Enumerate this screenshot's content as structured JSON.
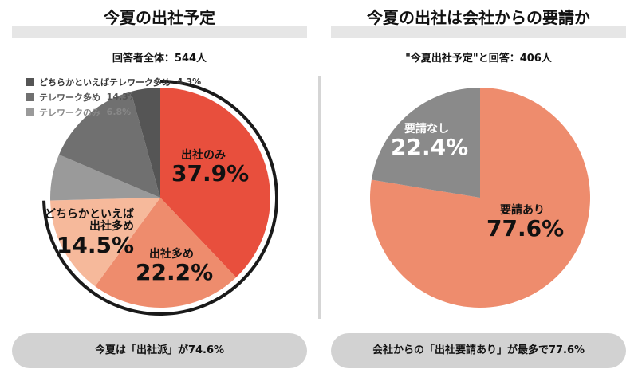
{
  "left": {
    "title": "今夏の出社予定",
    "subtitle": "回答者全体：544人",
    "summary": "今夏は「出社派」が74.6%"
  },
  "right": {
    "title": "今夏の出社は会社からの要請か",
    "subtitle": "\"今夏出社予定\"と回答：406人",
    "summary": "会社からの「出社要請あり」が最多で77.6%"
  },
  "chart_data": [
    {
      "type": "pie",
      "title": "今夏の出社予定",
      "start": "top",
      "direction": "clockwise",
      "slices": [
        {
          "label": "出社のみ",
          "value": 37.9,
          "display": "37.9%",
          "color": "#e84f3d"
        },
        {
          "label": "出社多め",
          "value": 22.2,
          "display": "22.2%",
          "color": "#ee8c6d"
        },
        {
          "label": "どちらかといえば出社多め",
          "label_lines": [
            "どちらかといえば",
            "出社多め"
          ],
          "value": 14.5,
          "display": "14.5%",
          "color": "#f6b99b"
        },
        {
          "label": "テレワークのみ",
          "value": 6.8,
          "display": "6.8%",
          "color": "#9a9a9a"
        },
        {
          "label": "テレワーク多め",
          "value": 14.3,
          "display": "14.3%",
          "color": "#707070"
        },
        {
          "label": "どちらかといえばテレワーク多め",
          "value": 4.3,
          "display": "4.3%",
          "color": "#555555"
        }
      ],
      "legend": [
        {
          "label": "どちらかといえばテレワーク多め",
          "display": "4.3%",
          "color": "#555555"
        },
        {
          "label": "テレワーク多め",
          "display": "14.3%",
          "color": "#707070"
        },
        {
          "label": "テレワークのみ",
          "display": "6.8%",
          "color": "#9a9a9a"
        }
      ],
      "highlight_arc_total": 74.6
    },
    {
      "type": "pie",
      "title": "今夏の出社は会社からの要請か",
      "start": "top",
      "direction": "clockwise",
      "slices": [
        {
          "label": "要請あり",
          "value": 77.6,
          "display": "77.6%",
          "color": "#ee8c6d"
        },
        {
          "label": "要請なし",
          "value": 22.4,
          "display": "22.4%",
          "color": "#8a8a8a"
        }
      ]
    }
  ]
}
